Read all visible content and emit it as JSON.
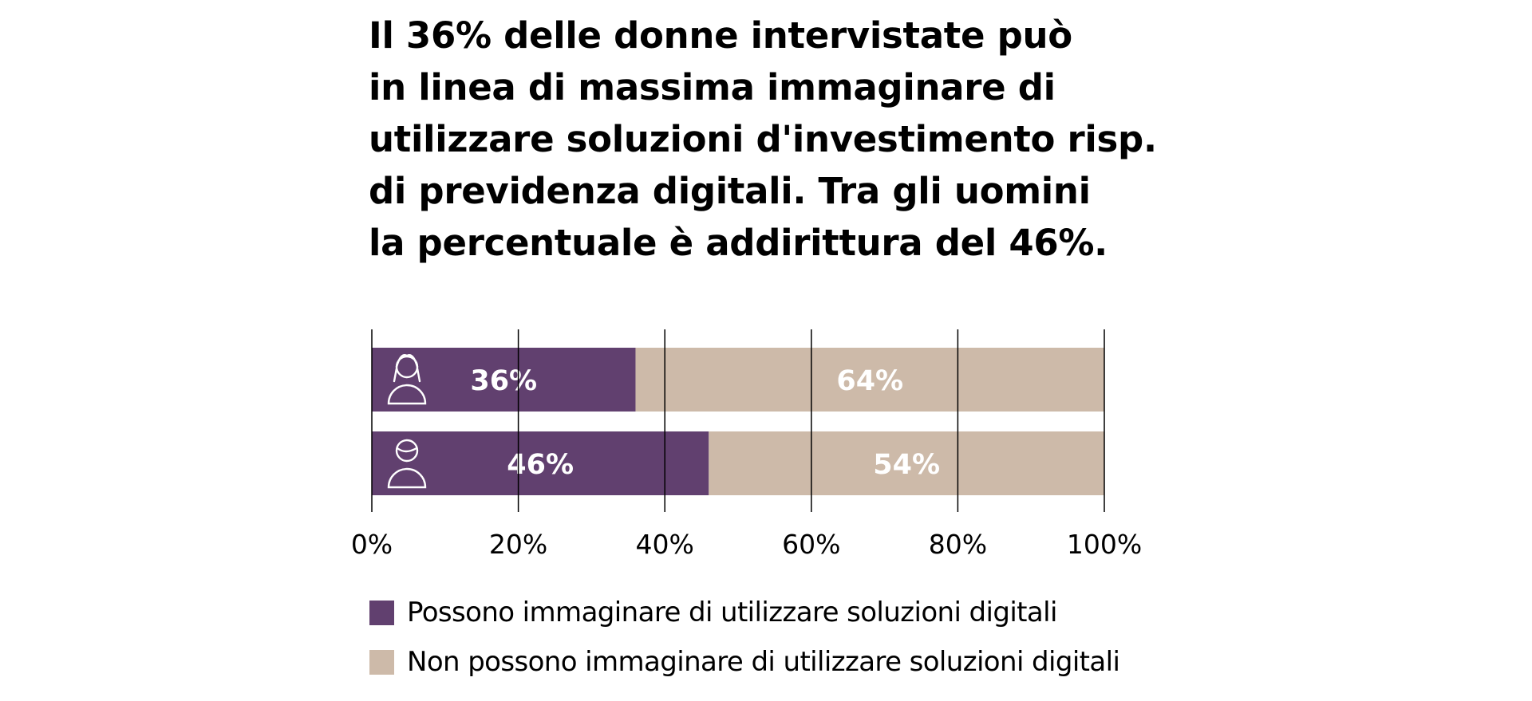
{
  "title_lines": [
    "Il 36% delle donne intervistate può",
    "in linea di massima immaginare di",
    "utilizzare soluzioni d'investimento risp.",
    "di previdenza digitali. Tra gli uomini",
    "la percentuale è addirittura del 46%."
  ],
  "chart_data": {
    "type": "bar",
    "orientation": "horizontal",
    "stacked": true,
    "title": "Il 36% delle donne intervistate può in linea di massima immaginare di utilizzare soluzioni d'investimento risp. di previdenza digitali. Tra gli uomini la percentuale è addirittura del 46%.",
    "categories": [
      "woman-icon",
      "man-icon"
    ],
    "series": [
      {
        "name": "Possono immaginare di utilizzare soluzioni digitali",
        "values": [
          36,
          46
        ],
        "labels": [
          "36%",
          "46%"
        ],
        "color": "#61406F"
      },
      {
        "name": "Non possono immaginare di utilizzare soluzioni digitali",
        "values": [
          64,
          54
        ],
        "labels": [
          "64%",
          "54%"
        ],
        "color": "#CDBAA9"
      }
    ],
    "xlim": [
      0,
      100
    ],
    "xticks": [
      0,
      20,
      40,
      60,
      80,
      100
    ],
    "xtick_labels": [
      "0%",
      "20%",
      "40%",
      "60%",
      "80%",
      "100%"
    ],
    "grid": true,
    "legend_position": "bottom"
  }
}
